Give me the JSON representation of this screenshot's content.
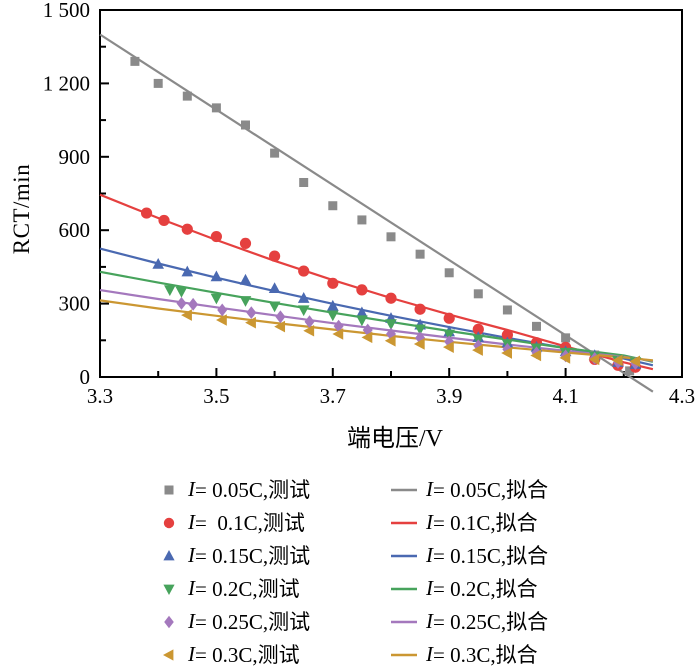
{
  "figure_background": "#ffffff",
  "axis_color": "#000000",
  "chart_data": {
    "type": "scatter",
    "title": "",
    "xlabel": "端电压/V",
    "ylabel": "RCT/min",
    "xlim": [
      3.3,
      4.3
    ],
    "ylim": [
      0,
      1500
    ],
    "grid": false,
    "legend_position": "below-plot, two columns (measured points left, fitted lines right)",
    "x_major_ticks": [
      3.3,
      3.5,
      3.7,
      3.9,
      4.1,
      4.3
    ],
    "x_major_labels": [
      "3.3",
      "3.5",
      "3.7",
      "3.9",
      "4.1",
      "4.3"
    ],
    "x_minor_ticks": [
      3.4,
      3.6,
      3.8,
      4.0,
      4.2
    ],
    "y_major_ticks": [
      0,
      300,
      600,
      900,
      1200,
      1500
    ],
    "y_major_labels": [
      "0",
      "300",
      "600",
      "900",
      "1 200",
      "1 500"
    ],
    "y_minor_ticks": [
      150,
      450,
      750,
      1050,
      1350
    ],
    "series": [
      {
        "name": "I=0.05C,测试",
        "fit_name": "I=0.05C,拟合",
        "legend_i": "I",
        "legend_test": "= 0.05C,测试",
        "legend_fit": "= 0.05C,拟合",
        "color": "#8a8a8a",
        "marker": "square",
        "points": [
          [
            3.36,
            1290
          ],
          [
            3.4,
            1200
          ],
          [
            3.45,
            1148
          ],
          [
            3.5,
            1100
          ],
          [
            3.55,
            1030
          ],
          [
            3.6,
            915
          ],
          [
            3.65,
            795
          ],
          [
            3.7,
            700
          ],
          [
            3.75,
            642
          ],
          [
            3.8,
            573
          ],
          [
            3.85,
            502
          ],
          [
            3.9,
            426
          ],
          [
            3.95,
            340
          ],
          [
            4.0,
            274
          ],
          [
            4.05,
            207
          ],
          [
            4.1,
            160
          ],
          [
            4.15,
            90
          ],
          [
            4.21,
            25
          ]
        ],
        "fit": [
          [
            3.3,
            1400
          ],
          [
            4.25,
            -60
          ]
        ]
      },
      {
        "name": "I=0.1C,测试",
        "fit_name": "I=0.1C,拟合",
        "legend_i": "I",
        "legend_test": "=  0.1C,测试",
        "legend_fit": "= 0.1C,拟合",
        "color": "#e5403f",
        "marker": "circle",
        "points": [
          [
            3.38,
            670
          ],
          [
            3.41,
            640
          ],
          [
            3.45,
            604
          ],
          [
            3.5,
            574
          ],
          [
            3.55,
            546
          ],
          [
            3.6,
            494
          ],
          [
            3.65,
            433
          ],
          [
            3.7,
            383
          ],
          [
            3.75,
            356
          ],
          [
            3.8,
            322
          ],
          [
            3.85,
            277
          ],
          [
            3.9,
            240
          ],
          [
            3.95,
            195
          ],
          [
            4.0,
            172
          ],
          [
            4.05,
            140
          ],
          [
            4.1,
            121
          ],
          [
            4.15,
            72
          ],
          [
            4.19,
            48
          ],
          [
            4.22,
            40
          ]
        ],
        "fit": [
          [
            3.3,
            745
          ],
          [
            3.4,
            650
          ],
          [
            3.5,
            560
          ],
          [
            3.6,
            475
          ],
          [
            3.7,
            396
          ],
          [
            3.8,
            323
          ],
          [
            3.9,
            255
          ],
          [
            4.0,
            192
          ],
          [
            4.1,
            125
          ],
          [
            4.2,
            60
          ],
          [
            4.25,
            32
          ]
        ]
      },
      {
        "name": "I=0.15C,测试",
        "fit_name": "I=0.15C,拟合",
        "legend_i": "I",
        "legend_test": "= 0.15C,测试",
        "legend_fit": "= 0.15C,拟合",
        "color": "#4a69b1",
        "marker": "triangle-up",
        "points": [
          [
            3.4,
            461
          ],
          [
            3.45,
            430
          ],
          [
            3.5,
            410
          ],
          [
            3.55,
            396
          ],
          [
            3.6,
            362
          ],
          [
            3.65,
            322
          ],
          [
            3.7,
            290
          ],
          [
            3.75,
            263
          ],
          [
            3.8,
            240
          ],
          [
            3.85,
            213
          ],
          [
            3.9,
            185
          ],
          [
            3.95,
            162
          ],
          [
            4.0,
            140
          ],
          [
            4.05,
            122
          ],
          [
            4.1,
            104
          ],
          [
            4.15,
            88
          ],
          [
            4.19,
            60
          ],
          [
            4.22,
            52
          ]
        ],
        "fit": [
          [
            3.3,
            525
          ],
          [
            3.4,
            464
          ],
          [
            3.5,
            406
          ],
          [
            3.6,
            351
          ],
          [
            3.7,
            299
          ],
          [
            3.8,
            250
          ],
          [
            3.9,
            204
          ],
          [
            4.0,
            160
          ],
          [
            4.1,
            118
          ],
          [
            4.2,
            75
          ],
          [
            4.25,
            48
          ]
        ]
      },
      {
        "name": "I=0.2C,测试",
        "fit_name": "I=0.2C,拟合",
        "legend_i": "I",
        "legend_test": "= 0.2C,测试",
        "legend_fit": "= 0.2C,拟合",
        "color": "#47a35c",
        "marker": "triangle-down",
        "points": [
          [
            3.42,
            356
          ],
          [
            3.44,
            349
          ],
          [
            3.5,
            322
          ],
          [
            3.55,
            312
          ],
          [
            3.6,
            290
          ],
          [
            3.65,
            274
          ],
          [
            3.7,
            253
          ],
          [
            3.75,
            233
          ],
          [
            3.8,
            217
          ],
          [
            3.85,
            196
          ],
          [
            3.9,
            175
          ],
          [
            3.95,
            155
          ],
          [
            4.0,
            136
          ],
          [
            4.05,
            118
          ],
          [
            4.1,
            100
          ],
          [
            4.15,
            85
          ],
          [
            4.19,
            68
          ],
          [
            4.22,
            62
          ]
        ],
        "fit": [
          [
            3.3,
            430
          ],
          [
            3.4,
            386
          ],
          [
            3.5,
            344
          ],
          [
            3.6,
            303
          ],
          [
            3.7,
            263
          ],
          [
            3.8,
            225
          ],
          [
            3.9,
            188
          ],
          [
            4.0,
            153
          ],
          [
            4.1,
            118
          ],
          [
            4.2,
            88
          ],
          [
            4.25,
            62
          ]
        ]
      },
      {
        "name": "I=0.25C,测试",
        "fit_name": "I=0.25C,拟合",
        "legend_i": "I",
        "legend_test": "= 0.25C,测试",
        "legend_fit": "= 0.25C,拟合",
        "color": "#a478bd",
        "marker": "diamond",
        "points": [
          [
            3.44,
            301
          ],
          [
            3.46,
            297
          ],
          [
            3.51,
            274
          ],
          [
            3.56,
            263
          ],
          [
            3.61,
            246
          ],
          [
            3.66,
            226
          ],
          [
            3.71,
            208
          ],
          [
            3.76,
            192
          ],
          [
            3.8,
            176
          ],
          [
            3.85,
            160
          ],
          [
            3.9,
            144
          ],
          [
            3.95,
            128
          ],
          [
            4.0,
            113
          ],
          [
            4.05,
            99
          ],
          [
            4.1,
            86
          ],
          [
            4.15,
            76
          ],
          [
            4.19,
            60
          ],
          [
            4.22,
            55
          ]
        ],
        "fit": [
          [
            3.3,
            355
          ],
          [
            3.4,
            319
          ],
          [
            3.5,
            285
          ],
          [
            3.6,
            252
          ],
          [
            3.7,
            220
          ],
          [
            3.8,
            190
          ],
          [
            3.9,
            161
          ],
          [
            4.0,
            133
          ],
          [
            4.1,
            107
          ],
          [
            4.2,
            82
          ],
          [
            4.25,
            66
          ]
        ]
      },
      {
        "name": "I=0.3C,测试",
        "fit_name": "I=0.3C,拟合",
        "legend_i": "I",
        "legend_test": "= 0.3C,测试",
        "legend_fit": "= 0.3C,拟合",
        "color": "#cb9732",
        "marker": "triangle-left",
        "points": [
          [
            3.45,
            253
          ],
          [
            3.51,
            233
          ],
          [
            3.56,
            222
          ],
          [
            3.61,
            206
          ],
          [
            3.66,
            189
          ],
          [
            3.71,
            176
          ],
          [
            3.76,
            162
          ],
          [
            3.8,
            148
          ],
          [
            3.85,
            135
          ],
          [
            3.9,
            122
          ],
          [
            3.95,
            110
          ],
          [
            4.0,
            98
          ],
          [
            4.05,
            88
          ],
          [
            4.1,
            78
          ],
          [
            4.15,
            72
          ],
          [
            4.19,
            68
          ],
          [
            4.22,
            64
          ]
        ],
        "fit": [
          [
            3.3,
            313
          ],
          [
            3.4,
            280
          ],
          [
            3.5,
            250
          ],
          [
            3.6,
            221
          ],
          [
            3.7,
            194
          ],
          [
            3.8,
            168
          ],
          [
            3.9,
            144
          ],
          [
            4.0,
            121
          ],
          [
            4.1,
            100
          ],
          [
            4.2,
            80
          ],
          [
            4.25,
            68
          ]
        ]
      }
    ]
  }
}
